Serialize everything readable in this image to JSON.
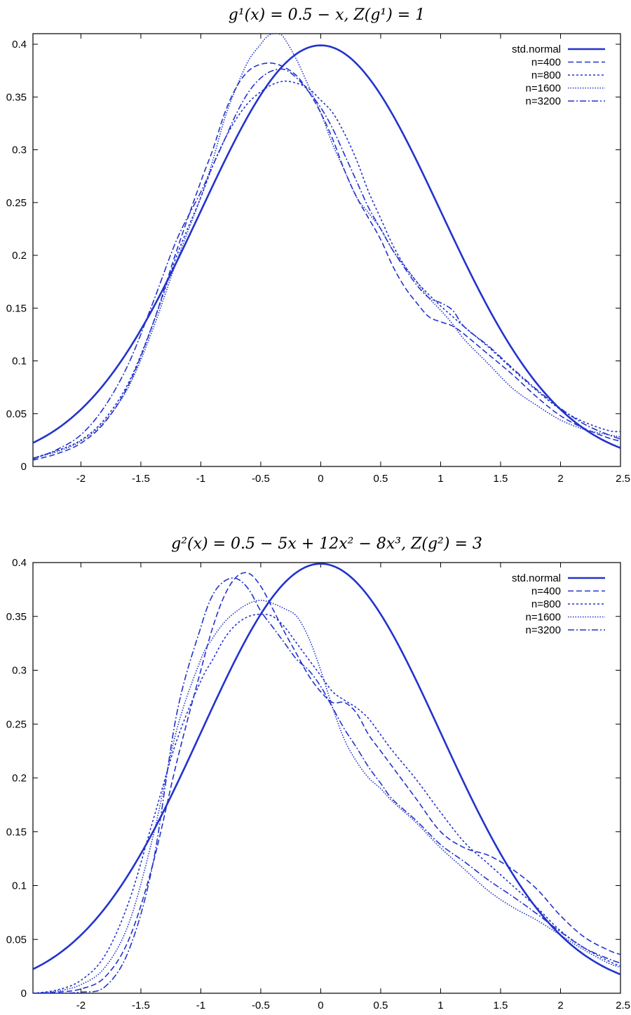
{
  "chart_data": [
    {
      "type": "line",
      "title": "g¹(x) = 0.5 − x,  Z(g¹) = 1",
      "xlim": [
        -2.4,
        2.5
      ],
      "ylim": [
        0,
        0.41
      ],
      "xticks": [
        -2,
        -1.5,
        -1,
        -0.5,
        0,
        0.5,
        1,
        1.5,
        2,
        2.5
      ],
      "xtick_labels": [
        "-2",
        "-1.5",
        "-1",
        "-0.5",
        "0",
        "0.5",
        "1",
        "1.5",
        "2",
        "2.5"
      ],
      "yticks": [
        0,
        0.05,
        0.1,
        0.15,
        0.2,
        0.25,
        0.3,
        0.35,
        0.4
      ],
      "ytick_labels": [
        "0",
        "0.05",
        "0.1",
        "0.15",
        "0.2",
        "0.25",
        "0.3",
        "0.35",
        "0.4"
      ],
      "legend_position": "top-right",
      "color": "#2233cc",
      "series": [
        {
          "name": "std.normal",
          "style": "solid",
          "generator": "normal",
          "x": [],
          "y": []
        },
        {
          "name": "n=400",
          "style": "dashed",
          "x": [
            -2.4,
            -2.2,
            -2.0,
            -1.8,
            -1.6,
            -1.4,
            -1.2,
            -1.0,
            -0.9,
            -0.8,
            -0.7,
            -0.6,
            -0.5,
            -0.4,
            -0.3,
            -0.2,
            -0.1,
            0.0,
            0.1,
            0.2,
            0.3,
            0.4,
            0.5,
            0.6,
            0.7,
            0.8,
            0.9,
            1.0,
            1.1,
            1.2,
            1.4,
            1.6,
            1.8,
            2.0,
            2.2,
            2.4,
            2.5
          ],
          "y": [
            0.006,
            0.012,
            0.022,
            0.042,
            0.078,
            0.135,
            0.205,
            0.27,
            0.3,
            0.335,
            0.36,
            0.375,
            0.381,
            0.382,
            0.378,
            0.37,
            0.355,
            0.335,
            0.31,
            0.28,
            0.255,
            0.235,
            0.215,
            0.19,
            0.17,
            0.155,
            0.142,
            0.137,
            0.133,
            0.125,
            0.106,
            0.087,
            0.066,
            0.048,
            0.036,
            0.027,
            0.024
          ]
        },
        {
          "name": "n=800",
          "style": "dotted-short",
          "x": [
            -2.4,
            -2.2,
            -2.0,
            -1.8,
            -1.6,
            -1.4,
            -1.2,
            -1.0,
            -0.9,
            -0.8,
            -0.7,
            -0.6,
            -0.5,
            -0.4,
            -0.3,
            -0.2,
            -0.1,
            0.0,
            0.1,
            0.2,
            0.3,
            0.4,
            0.5,
            0.6,
            0.7,
            0.8,
            0.9,
            1.0,
            1.1,
            1.2,
            1.4,
            1.6,
            1.8,
            2.0,
            2.2,
            2.4,
            2.5
          ],
          "y": [
            0.008,
            0.015,
            0.025,
            0.045,
            0.08,
            0.135,
            0.2,
            0.255,
            0.285,
            0.31,
            0.33,
            0.345,
            0.355,
            0.362,
            0.365,
            0.363,
            0.358,
            0.347,
            0.335,
            0.315,
            0.29,
            0.26,
            0.235,
            0.21,
            0.19,
            0.175,
            0.163,
            0.152,
            0.142,
            0.132,
            0.113,
            0.092,
            0.072,
            0.054,
            0.042,
            0.034,
            0.033
          ]
        },
        {
          "name": "n=1600",
          "style": "dotted",
          "x": [
            -2.4,
            -2.2,
            -2.0,
            -1.8,
            -1.6,
            -1.4,
            -1.2,
            -1.0,
            -0.9,
            -0.8,
            -0.7,
            -0.6,
            -0.5,
            -0.45,
            -0.4,
            -0.35,
            -0.3,
            -0.2,
            -0.1,
            0.0,
            0.1,
            0.2,
            0.3,
            0.4,
            0.5,
            0.6,
            0.7,
            0.8,
            0.9,
            1.0,
            1.1,
            1.2,
            1.4,
            1.6,
            1.8,
            2.0,
            2.2,
            2.4,
            2.5
          ],
          "y": [
            0.008,
            0.014,
            0.024,
            0.043,
            0.076,
            0.13,
            0.195,
            0.255,
            0.29,
            0.33,
            0.36,
            0.385,
            0.4,
            0.407,
            0.41,
            0.41,
            0.405,
            0.385,
            0.36,
            0.335,
            0.305,
            0.28,
            0.255,
            0.24,
            0.225,
            0.205,
            0.19,
            0.175,
            0.16,
            0.148,
            0.135,
            0.12,
            0.097,
            0.074,
            0.058,
            0.044,
            0.035,
            0.03,
            0.028
          ]
        },
        {
          "name": "n=3200",
          "style": "dashdot",
          "x": [
            -2.4,
            -2.2,
            -2.0,
            -1.8,
            -1.6,
            -1.4,
            -1.2,
            -1.0,
            -0.9,
            -0.8,
            -0.7,
            -0.6,
            -0.5,
            -0.4,
            -0.3,
            -0.2,
            -0.1,
            0.0,
            0.1,
            0.2,
            0.3,
            0.4,
            0.5,
            0.6,
            0.7,
            0.8,
            0.9,
            1.0,
            1.1,
            1.2,
            1.4,
            1.6,
            1.8,
            2.0,
            2.2,
            2.4,
            2.5
          ],
          "y": [
            0.007,
            0.016,
            0.03,
            0.057,
            0.098,
            0.155,
            0.215,
            0.26,
            0.285,
            0.31,
            0.335,
            0.355,
            0.368,
            0.375,
            0.376,
            0.368,
            0.355,
            0.34,
            0.32,
            0.295,
            0.27,
            0.245,
            0.225,
            0.205,
            0.188,
            0.172,
            0.16,
            0.155,
            0.148,
            0.132,
            0.114,
            0.093,
            0.073,
            0.055,
            0.04,
            0.03,
            0.026
          ]
        }
      ]
    },
    {
      "type": "line",
      "title": "g²(x) = 0.5 − 5x + 12x² − 8x³,  Z(g²) = 3",
      "xlim": [
        -2.4,
        2.5
      ],
      "ylim": [
        0,
        0.4
      ],
      "xticks": [
        -2,
        -1.5,
        -1,
        -0.5,
        0,
        0.5,
        1,
        1.5,
        2,
        2.5
      ],
      "xtick_labels": [
        "-2",
        "-1.5",
        "-1",
        "-0.5",
        "0",
        "0.5",
        "1",
        "1.5",
        "2",
        "2.5"
      ],
      "yticks": [
        0,
        0.05,
        0.1,
        0.15,
        0.2,
        0.25,
        0.3,
        0.35,
        0.4
      ],
      "ytick_labels": [
        "0",
        "0.05",
        "0.1",
        "0.15",
        "0.2",
        "0.25",
        "0.3",
        "0.35",
        "0.4"
      ],
      "legend_position": "top-right",
      "color": "#2233cc",
      "series": [
        {
          "name": "std.normal",
          "style": "solid",
          "generator": "normal",
          "x": [],
          "y": []
        },
        {
          "name": "n=400",
          "style": "dashed",
          "x": [
            -2.4,
            -2.2,
            -2.0,
            -1.8,
            -1.6,
            -1.4,
            -1.2,
            -1.0,
            -0.9,
            -0.8,
            -0.7,
            -0.6,
            -0.5,
            -0.4,
            -0.3,
            -0.2,
            -0.1,
            0.0,
            0.1,
            0.2,
            0.3,
            0.4,
            0.5,
            0.6,
            0.8,
            1.0,
            1.2,
            1.4,
            1.6,
            1.8,
            2.0,
            2.2,
            2.4,
            2.5
          ],
          "y": [
            0.0,
            0.001,
            0.004,
            0.015,
            0.05,
            0.12,
            0.215,
            0.3,
            0.34,
            0.37,
            0.387,
            0.39,
            0.378,
            0.357,
            0.335,
            0.315,
            0.295,
            0.28,
            0.27,
            0.27,
            0.26,
            0.24,
            0.225,
            0.21,
            0.18,
            0.15,
            0.135,
            0.128,
            0.115,
            0.097,
            0.072,
            0.052,
            0.04,
            0.036
          ]
        },
        {
          "name": "n=800",
          "style": "dotted-short",
          "x": [
            -2.4,
            -2.2,
            -2.0,
            -1.8,
            -1.6,
            -1.4,
            -1.2,
            -1.0,
            -0.9,
            -0.8,
            -0.7,
            -0.6,
            -0.5,
            -0.4,
            -0.3,
            -0.2,
            -0.1,
            0.0,
            0.1,
            0.2,
            0.3,
            0.4,
            0.5,
            0.6,
            0.8,
            1.0,
            1.2,
            1.4,
            1.6,
            1.8,
            2.0,
            2.2,
            2.4,
            2.5
          ],
          "y": [
            0.0,
            0.003,
            0.012,
            0.035,
            0.085,
            0.16,
            0.235,
            0.29,
            0.31,
            0.33,
            0.343,
            0.35,
            0.352,
            0.35,
            0.34,
            0.325,
            0.31,
            0.295,
            0.28,
            0.272,
            0.265,
            0.255,
            0.24,
            0.225,
            0.198,
            0.168,
            0.14,
            0.12,
            0.1,
            0.08,
            0.058,
            0.042,
            0.03,
            0.025
          ]
        },
        {
          "name": "n=1600",
          "style": "dotted",
          "x": [
            -2.4,
            -2.2,
            -2.0,
            -1.8,
            -1.6,
            -1.4,
            -1.2,
            -1.0,
            -0.9,
            -0.8,
            -0.7,
            -0.6,
            -0.5,
            -0.4,
            -0.3,
            -0.2,
            -0.1,
            0.0,
            0.1,
            0.2,
            0.3,
            0.4,
            0.5,
            0.6,
            0.8,
            1.0,
            1.2,
            1.4,
            1.6,
            1.8,
            2.0,
            2.2,
            2.4,
            2.5
          ],
          "y": [
            0.0,
            0.002,
            0.008,
            0.024,
            0.065,
            0.145,
            0.245,
            0.31,
            0.33,
            0.345,
            0.355,
            0.362,
            0.365,
            0.362,
            0.357,
            0.35,
            0.33,
            0.3,
            0.265,
            0.235,
            0.215,
            0.2,
            0.19,
            0.178,
            0.158,
            0.135,
            0.115,
            0.095,
            0.08,
            0.068,
            0.054,
            0.04,
            0.028,
            0.024
          ]
        },
        {
          "name": "n=3200",
          "style": "dashdot",
          "x": [
            -2.4,
            -2.2,
            -2.0,
            -1.8,
            -1.6,
            -1.4,
            -1.2,
            -1.0,
            -0.9,
            -0.8,
            -0.7,
            -0.6,
            -0.5,
            -0.4,
            -0.3,
            -0.2,
            -0.1,
            0.0,
            0.1,
            0.2,
            0.3,
            0.4,
            0.5,
            0.6,
            0.8,
            1.0,
            1.2,
            1.4,
            1.6,
            1.8,
            2.0,
            2.2,
            2.4,
            2.5
          ],
          "y": [
            0.0,
            0.0,
            0.001,
            0.006,
            0.04,
            0.12,
            0.26,
            0.34,
            0.37,
            0.383,
            0.385,
            0.375,
            0.355,
            0.34,
            0.325,
            0.31,
            0.3,
            0.285,
            0.265,
            0.245,
            0.228,
            0.21,
            0.195,
            0.18,
            0.16,
            0.138,
            0.122,
            0.105,
            0.09,
            0.074,
            0.057,
            0.042,
            0.032,
            0.028
          ]
        }
      ]
    }
  ]
}
